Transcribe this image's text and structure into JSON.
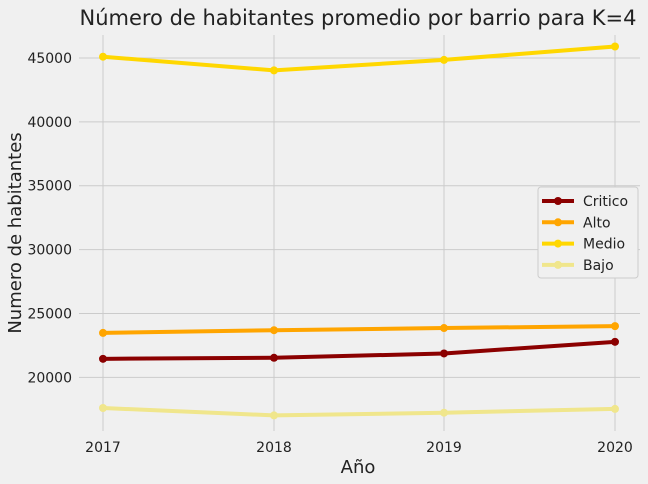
{
  "chart_data": {
    "type": "line",
    "title": "Número de habitantes promedio por  barrio para K=4",
    "xlabel": "Año",
    "ylabel": "Numero de habitantes",
    "x": [
      2017,
      2018,
      2019,
      2020
    ],
    "x_tick_labels": [
      "2017",
      "2018",
      "2019",
      "2020"
    ],
    "ylim": [
      15800,
      46800
    ],
    "y_ticks": [
      20000,
      25000,
      30000,
      35000,
      40000,
      45000
    ],
    "y_tick_labels": [
      "20000",
      "25000",
      "30000",
      "35000",
      "40000",
      "45000"
    ],
    "grid": true,
    "legend_position": "center-right",
    "series": [
      {
        "name": "Critico",
        "color": "#8b0000",
        "values": [
          21450,
          21530,
          21870,
          22780
        ]
      },
      {
        "name": "Alto",
        "color": "#ffa500",
        "values": [
          23480,
          23690,
          23860,
          24010
        ]
      },
      {
        "name": "Medio",
        "color": "#ffd700",
        "values": [
          45100,
          44030,
          44850,
          45900
        ]
      },
      {
        "name": "Bajo",
        "color": "#f0e68c",
        "values": [
          17600,
          17020,
          17230,
          17530
        ]
      }
    ]
  }
}
